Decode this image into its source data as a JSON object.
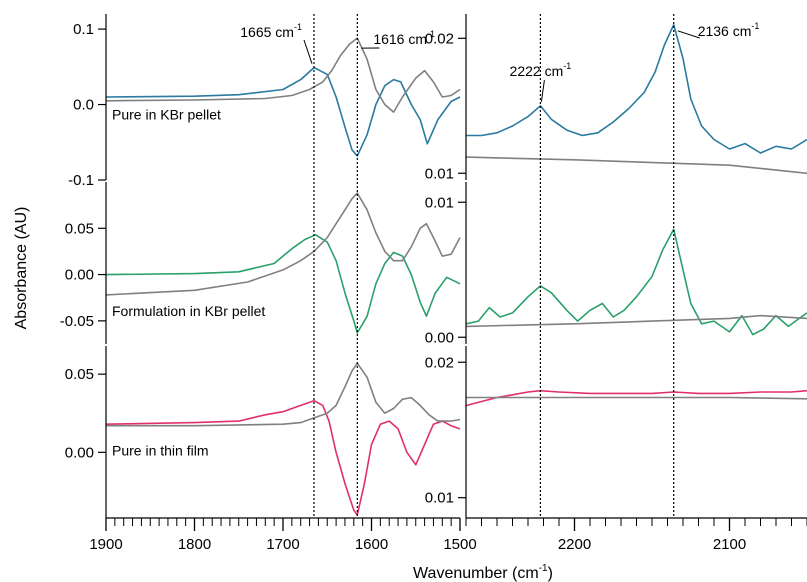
{
  "chart_data": [
    {
      "type": "line",
      "panel": "left-top",
      "xlim": [
        1900,
        1500
      ],
      "ylim": [
        -0.1,
        0.12
      ],
      "yticks": [
        -0.1,
        0.0,
        0.1
      ],
      "ytick_labels": [
        "-0.1",
        "0.0",
        "0.1"
      ],
      "label": "Pure in KBr pellet",
      "series": [
        {
          "color": "#2a7aa0",
          "x": [
            1900,
            1800,
            1750,
            1700,
            1680,
            1665,
            1650,
            1640,
            1630,
            1622,
            1616,
            1605,
            1595,
            1585,
            1575,
            1567,
            1555,
            1545,
            1537,
            1525,
            1510,
            1500
          ],
          "y": [
            0.01,
            0.011,
            0.013,
            0.02,
            0.033,
            0.049,
            0.04,
            0.01,
            -0.03,
            -0.06,
            -0.068,
            -0.04,
            0.0,
            0.025,
            0.033,
            0.03,
            0.0,
            -0.02,
            -0.052,
            -0.02,
            0.004,
            0.01
          ]
        },
        {
          "color": "#808080",
          "x": [
            1900,
            1800,
            1720,
            1690,
            1670,
            1655,
            1645,
            1635,
            1625,
            1616,
            1605,
            1595,
            1585,
            1575,
            1565,
            1550,
            1540,
            1530,
            1520,
            1510,
            1500
          ],
          "y": [
            0.005,
            0.006,
            0.008,
            0.012,
            0.02,
            0.03,
            0.045,
            0.065,
            0.08,
            0.088,
            0.06,
            0.02,
            0.0,
            -0.01,
            0.01,
            0.035,
            0.045,
            0.03,
            0.01,
            0.012,
            0.02
          ]
        }
      ],
      "annotations": [
        {
          "text": "1665 cm",
          "sup": "-1",
          "x": 1665
        },
        {
          "text": "1616 cm",
          "sup": "-1",
          "x": 1616
        }
      ]
    },
    {
      "type": "line",
      "panel": "left-middle",
      "xlim": [
        1900,
        1500
      ],
      "ylim": [
        -0.075,
        0.1
      ],
      "yticks": [
        -0.05,
        0.0,
        0.05
      ],
      "ytick_labels": [
        "-0.05",
        "0.00",
        "0.05"
      ],
      "label": "Formulation in KBr pellet",
      "series": [
        {
          "color": "#2aa06a",
          "x": [
            1900,
            1800,
            1750,
            1710,
            1690,
            1675,
            1663,
            1650,
            1640,
            1630,
            1620,
            1616,
            1605,
            1595,
            1585,
            1575,
            1565,
            1555,
            1545,
            1538,
            1528,
            1515,
            1500
          ],
          "y": [
            0.0,
            0.001,
            0.003,
            0.012,
            0.028,
            0.038,
            0.043,
            0.035,
            0.015,
            -0.02,
            -0.05,
            -0.063,
            -0.045,
            -0.01,
            0.012,
            0.024,
            0.02,
            0.0,
            -0.03,
            -0.045,
            -0.02,
            -0.003,
            -0.01
          ]
        },
        {
          "color": "#808080",
          "x": [
            1900,
            1800,
            1740,
            1700,
            1680,
            1665,
            1650,
            1640,
            1630,
            1622,
            1616,
            1605,
            1595,
            1585,
            1575,
            1565,
            1555,
            1545,
            1538,
            1530,
            1520,
            1510,
            1500
          ],
          "y": [
            -0.022,
            -0.017,
            -0.008,
            0.005,
            0.015,
            0.025,
            0.04,
            0.055,
            0.07,
            0.082,
            0.088,
            0.07,
            0.045,
            0.025,
            0.015,
            0.015,
            0.03,
            0.05,
            0.055,
            0.04,
            0.02,
            0.022,
            0.04
          ]
        }
      ]
    },
    {
      "type": "line",
      "panel": "left-bottom",
      "xlim": [
        1900,
        1500
      ],
      "ylim": [
        -0.042,
        0.068
      ],
      "yticks": [
        0.0,
        0.05
      ],
      "ytick_labels": [
        "0.00",
        "0.05"
      ],
      "label": "Pure in thin film",
      "series": [
        {
          "color": "#e0306a",
          "x": [
            1900,
            1800,
            1750,
            1720,
            1700,
            1680,
            1665,
            1655,
            1648,
            1640,
            1630,
            1620,
            1616,
            1608,
            1600,
            1590,
            1580,
            1570,
            1560,
            1550,
            1540,
            1530,
            1520,
            1510,
            1500
          ],
          "y": [
            0.018,
            0.019,
            0.02,
            0.024,
            0.026,
            0.03,
            0.033,
            0.03,
            0.02,
            0.0,
            -0.02,
            -0.037,
            -0.04,
            -0.02,
            0.005,
            0.018,
            0.02,
            0.015,
            0.0,
            -0.008,
            0.005,
            0.018,
            0.02,
            0.017,
            0.015
          ]
        },
        {
          "color": "#808080",
          "x": [
            1900,
            1800,
            1700,
            1680,
            1665,
            1650,
            1640,
            1630,
            1622,
            1616,
            1605,
            1595,
            1585,
            1575,
            1565,
            1555,
            1545,
            1535,
            1525,
            1510,
            1500
          ],
          "y": [
            0.017,
            0.017,
            0.018,
            0.019,
            0.022,
            0.025,
            0.03,
            0.042,
            0.052,
            0.057,
            0.048,
            0.032,
            0.025,
            0.028,
            0.034,
            0.035,
            0.03,
            0.024,
            0.02,
            0.02,
            0.021
          ]
        }
      ]
    },
    {
      "type": "line",
      "panel": "right-top",
      "xlim": [
        2270,
        2050
      ],
      "ylim": [
        0.0095,
        0.0218
      ],
      "yticks": [
        0.01,
        0.02
      ],
      "ytick_labels": [
        "0.01",
        "0.02"
      ],
      "series": [
        {
          "color": "#2a7aa0",
          "x": [
            2270,
            2260,
            2250,
            2240,
            2230,
            2222,
            2215,
            2205,
            2195,
            2185,
            2175,
            2165,
            2155,
            2148,
            2142,
            2136,
            2130,
            2125,
            2118,
            2110,
            2100,
            2090,
            2080,
            2070,
            2060,
            2050
          ],
          "y": [
            0.0128,
            0.0128,
            0.013,
            0.0135,
            0.0142,
            0.015,
            0.014,
            0.0132,
            0.0128,
            0.013,
            0.0138,
            0.0148,
            0.016,
            0.0175,
            0.0195,
            0.021,
            0.0185,
            0.0155,
            0.0135,
            0.0125,
            0.0118,
            0.0122,
            0.0115,
            0.012,
            0.0118,
            0.0125
          ]
        },
        {
          "color": "#808080",
          "x": [
            2270,
            2200,
            2100,
            2050
          ],
          "y": [
            0.0112,
            0.011,
            0.0106,
            0.01
          ]
        }
      ],
      "annotations": [
        {
          "text": "2222 cm",
          "sup": "-1",
          "x": 2222
        },
        {
          "text": "2136 cm",
          "sup": "-1",
          "x": 2136
        }
      ]
    },
    {
      "type": "line",
      "panel": "right-middle",
      "xlim": [
        2270,
        2050
      ],
      "ylim": [
        -0.0005,
        0.0115
      ],
      "yticks": [
        0.0,
        0.01
      ],
      "ytick_labels": [
        "0.00",
        "0.01"
      ],
      "series": [
        {
          "color": "#2aa06a",
          "x": [
            2270,
            2262,
            2255,
            2248,
            2240,
            2230,
            2222,
            2215,
            2205,
            2198,
            2190,
            2182,
            2175,
            2168,
            2160,
            2150,
            2143,
            2136,
            2130,
            2125,
            2118,
            2110,
            2100,
            2092,
            2085,
            2078,
            2070,
            2062,
            2055,
            2050
          ],
          "y": [
            0.001,
            0.0012,
            0.0022,
            0.0015,
            0.0018,
            0.003,
            0.0038,
            0.0033,
            0.002,
            0.0012,
            0.002,
            0.0025,
            0.0015,
            0.002,
            0.003,
            0.0045,
            0.0065,
            0.008,
            0.005,
            0.0025,
            0.001,
            0.0012,
            0.0004,
            0.0016,
            0.0002,
            0.0006,
            0.0016,
            0.0008,
            0.0014,
            0.0018
          ]
        },
        {
          "color": "#808080",
          "x": [
            2270,
            2200,
            2150,
            2100,
            2080,
            2050
          ],
          "y": [
            0.0008,
            0.001,
            0.0012,
            0.0014,
            0.0016,
            0.0014
          ]
        }
      ]
    },
    {
      "type": "line",
      "panel": "right-bottom",
      "xlim": [
        2270,
        2050
      ],
      "ylim": [
        0.0085,
        0.0212
      ],
      "yticks": [
        0.01,
        0.02
      ],
      "ytick_labels": [
        "0.01",
        "0.02"
      ],
      "series": [
        {
          "color": "#e0306a",
          "x": [
            2270,
            2260,
            2250,
            2240,
            2230,
            2222,
            2210,
            2190,
            2170,
            2150,
            2136,
            2120,
            2100,
            2080,
            2060,
            2050
          ],
          "y": [
            0.0168,
            0.0171,
            0.0174,
            0.0176,
            0.0178,
            0.0179,
            0.0178,
            0.0177,
            0.0177,
            0.0177,
            0.0178,
            0.0177,
            0.0177,
            0.0178,
            0.0178,
            0.0179
          ]
        },
        {
          "color": "#808080",
          "x": [
            2270,
            2200,
            2150,
            2100,
            2050
          ],
          "y": [
            0.0174,
            0.0174,
            0.0174,
            0.0174,
            0.0173
          ]
        }
      ]
    }
  ],
  "axes": {
    "xlabel": "Wavenumber (cm",
    "xlabel_sup": "-1",
    "xlabel_close": ")",
    "ylabel": "Absorbance (AU)",
    "left_xticks": [
      1900,
      1800,
      1700,
      1600,
      1500
    ],
    "left_xtick_labels": [
      "1900",
      "1800",
      "1700",
      "1600",
      "1500"
    ],
    "right_xticks": [
      2200,
      2100
    ],
    "right_xtick_labels": [
      "2200",
      "2100"
    ],
    "ref_lines_left": [
      1665,
      1616
    ],
    "ref_lines_right": [
      2222,
      2136
    ]
  }
}
